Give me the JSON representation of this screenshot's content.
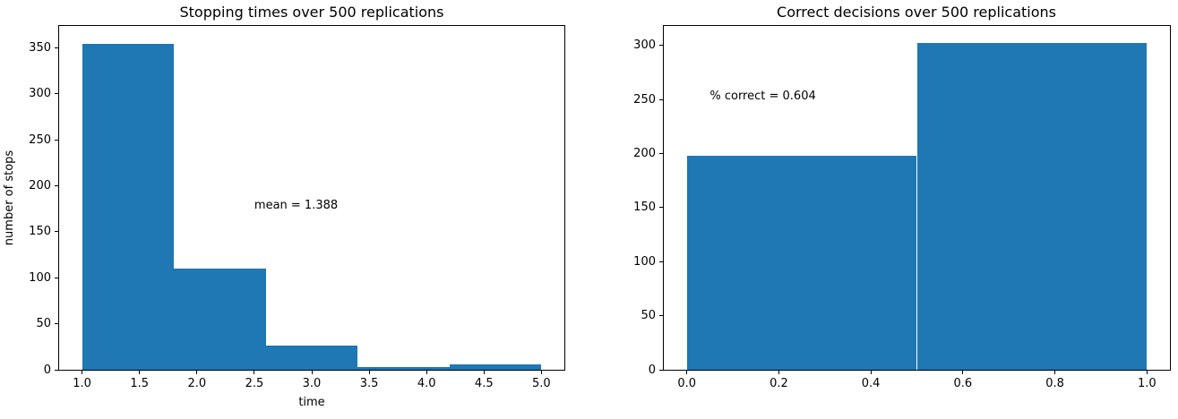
{
  "figure": {
    "background": "#ffffff",
    "bar_color": "#1f77b4",
    "spine_color": "#000000",
    "text_color": "#000000",
    "grid": false,
    "legend": false
  },
  "chart_data": [
    {
      "type": "bar",
      "subtype": "histogram",
      "title": "Stopping times over 500 replications",
      "xlabel": "time",
      "ylabel": "number of stops",
      "bin_edges": [
        1.0,
        1.8,
        2.6,
        3.4,
        4.2,
        5.0
      ],
      "values": [
        355,
        110,
        26,
        3,
        6
      ],
      "total_replications": 500,
      "xlim": [
        0.8,
        5.2
      ],
      "ylim": [
        0,
        374
      ],
      "xticks": [
        1.0,
        1.5,
        2.0,
        2.5,
        3.0,
        3.5,
        4.0,
        4.5,
        5.0
      ],
      "xtick_labels": [
        "1.0",
        "1.5",
        "2.0",
        "2.5",
        "3.0",
        "3.5",
        "4.0",
        "4.5",
        "5.0"
      ],
      "yticks": [
        0,
        50,
        100,
        150,
        200,
        250,
        300,
        350
      ],
      "ytick_labels": [
        "0",
        "50",
        "100",
        "150",
        "200",
        "250",
        "300",
        "350"
      ],
      "annotation": {
        "text": "mean = 1.388",
        "x": 2.5,
        "y": 175
      }
    },
    {
      "type": "bar",
      "subtype": "histogram",
      "title": "Correct decisions over 500 replications",
      "xlabel": "",
      "ylabel": "",
      "bin_edges": [
        0.0,
        0.5,
        1.0
      ],
      "values": [
        198,
        302
      ],
      "total_replications": 500,
      "xlim": [
        -0.05,
        1.05
      ],
      "ylim": [
        0,
        318
      ],
      "xticks": [
        0.0,
        0.2,
        0.4,
        0.6,
        0.8,
        1.0
      ],
      "xtick_labels": [
        "0.0",
        "0.2",
        "0.4",
        "0.6",
        "0.8",
        "1.0"
      ],
      "yticks": [
        0,
        50,
        100,
        150,
        200,
        250,
        300
      ],
      "ytick_labels": [
        "0",
        "50",
        "100",
        "150",
        "200",
        "250",
        "300"
      ],
      "annotation": {
        "text": "% correct = 0.604",
        "x": 0.05,
        "y": 250
      }
    }
  ]
}
